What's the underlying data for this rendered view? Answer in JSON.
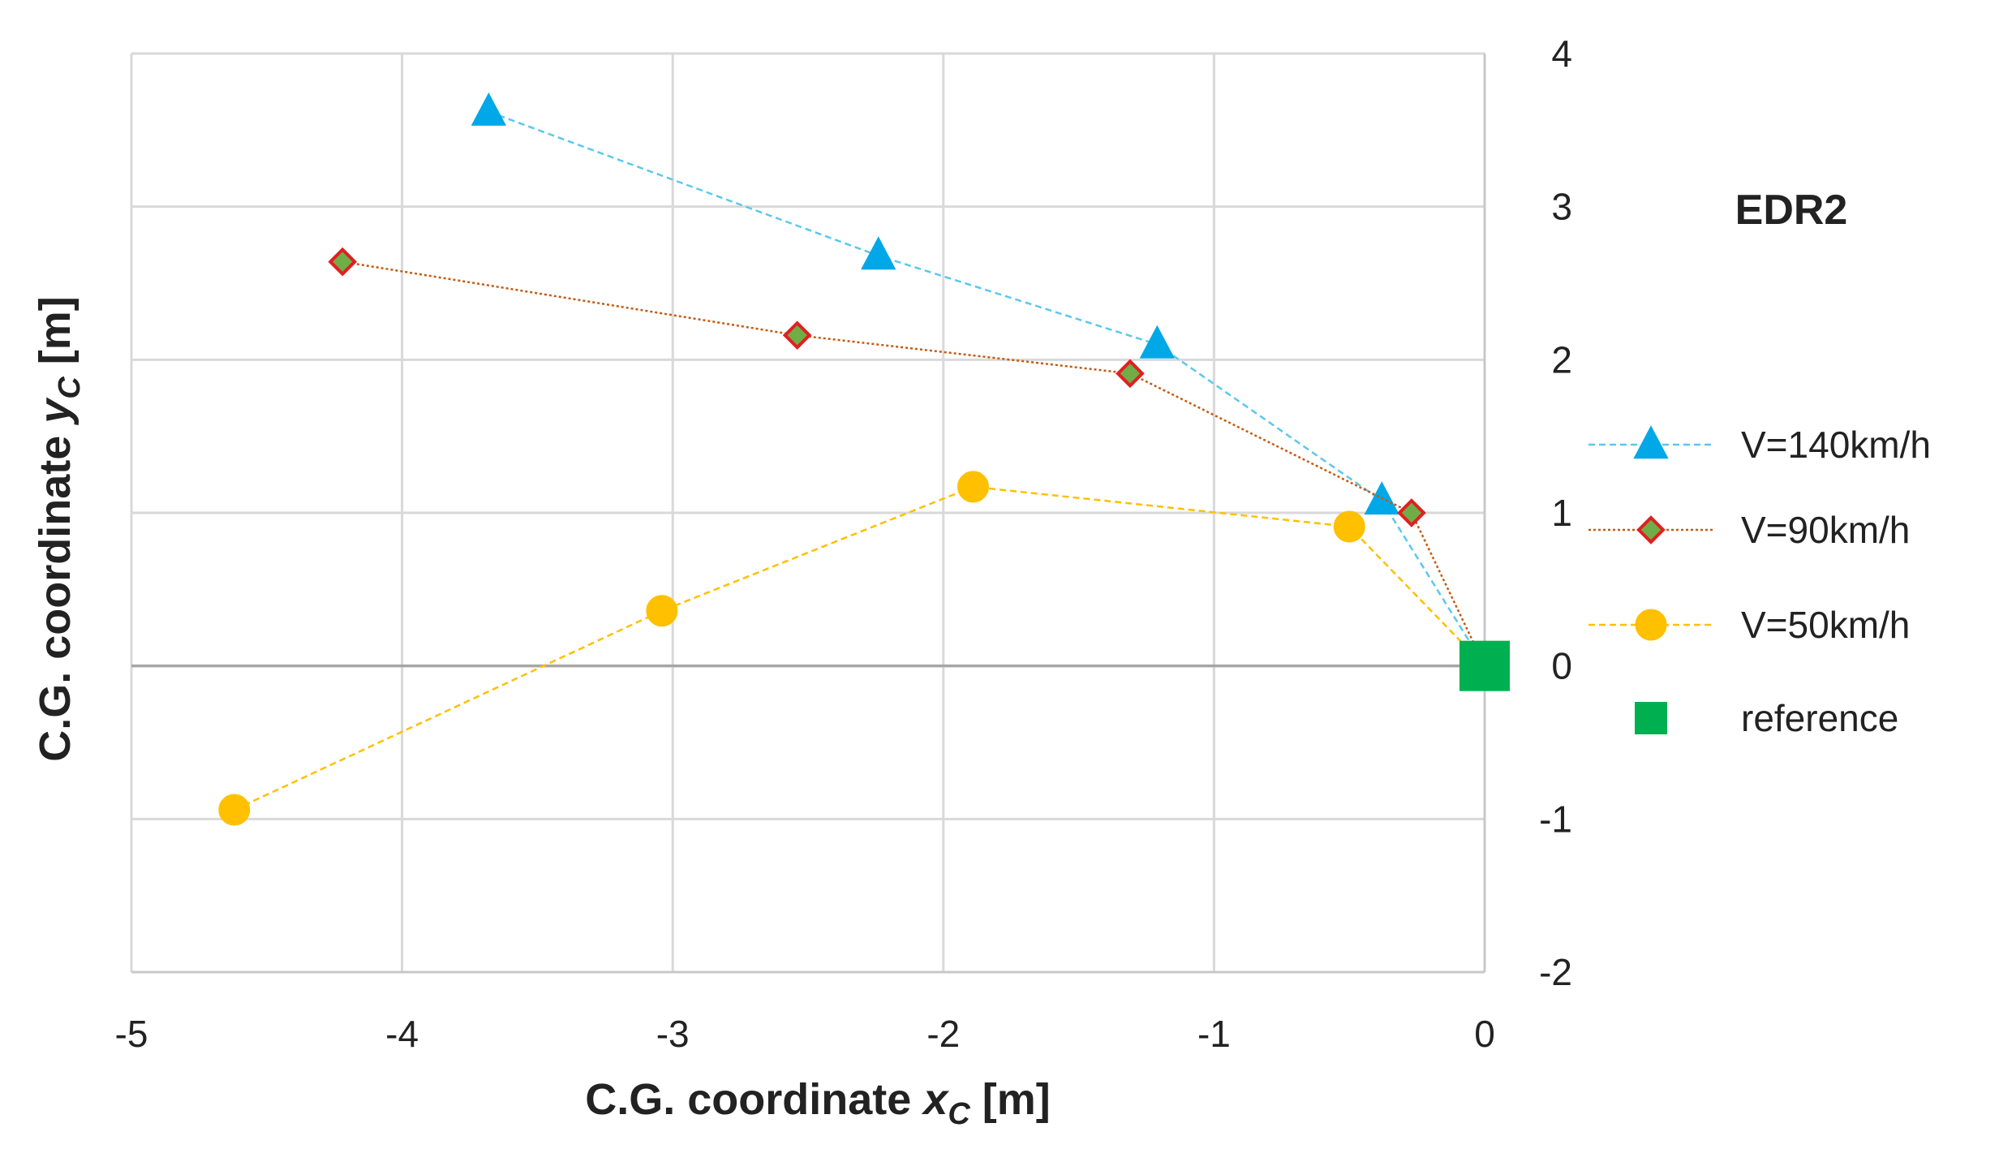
{
  "chart_data": {
    "type": "scatter",
    "title": "EDR2",
    "xlabel": {
      "prefix": "C.G. coordinate ",
      "symbol": "x",
      "subscript": "C",
      "suffix": " [m]"
    },
    "ylabel": {
      "prefix": "C.G. coordinate ",
      "symbol": "y",
      "subscript": "C",
      "suffix": " [m]"
    },
    "xlim": [
      -5,
      0
    ],
    "ylim": [
      -2,
      4
    ],
    "x_ticks": [
      -5,
      -4,
      -3,
      -2,
      -1,
      0
    ],
    "y_ticks": [
      -2,
      -1,
      0,
      1,
      2,
      3,
      4
    ],
    "x_tick_labels": [
      "-5",
      "-4",
      "-3",
      "-2",
      "-1",
      "0"
    ],
    "y_tick_labels": [
      "-2",
      "-1",
      "0",
      "1",
      "2",
      "3",
      "4"
    ],
    "grid": true,
    "y_axis_side": "right",
    "legend_position": "right",
    "series": [
      {
        "name": "V=140km/h",
        "marker": "triangle",
        "line_style": "dash",
        "color": "#5BC8EE",
        "marker_fill": "#00A8E8",
        "marker_stroke": "#00A8E8",
        "points": [
          [
            -3.68,
            3.62
          ],
          [
            -2.24,
            2.68
          ],
          [
            -1.21,
            2.1
          ],
          [
            -0.38,
            1.08
          ],
          [
            0,
            0
          ]
        ]
      },
      {
        "name": "V=90km/h",
        "marker": "diamond",
        "line_style": "dot",
        "color": "#C55A11",
        "marker_fill": "#70AD47",
        "marker_stroke": "#E02020",
        "points": [
          [
            -4.22,
            2.64
          ],
          [
            -2.54,
            2.16
          ],
          [
            -1.31,
            1.91
          ],
          [
            -0.27,
            1.0
          ],
          [
            0,
            0
          ]
        ]
      },
      {
        "name": "V=50km/h",
        "marker": "circle",
        "line_style": "dash",
        "color": "#FFC000",
        "marker_fill": "#FFC000",
        "marker_stroke": "#FFC000",
        "points": [
          [
            -4.62,
            -0.94
          ],
          [
            -3.04,
            0.36
          ],
          [
            -1.89,
            1.17
          ],
          [
            -0.5,
            0.91
          ],
          [
            0,
            0
          ]
        ]
      },
      {
        "name": "reference",
        "marker": "square",
        "line_style": "none",
        "color": "#00B050",
        "marker_fill": "#00B050",
        "marker_stroke": "#00B050",
        "points": [
          [
            0,
            0
          ]
        ]
      }
    ]
  }
}
